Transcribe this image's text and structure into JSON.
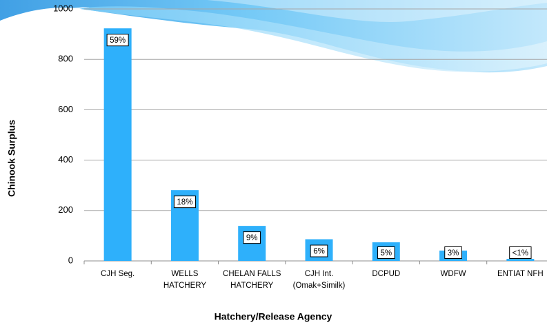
{
  "chart_data": {
    "type": "bar",
    "categories": [
      [
        "CJH Seg."
      ],
      [
        "WELLS",
        "HATCHERY"
      ],
      [
        "CHELAN FALLS",
        "HATCHERY"
      ],
      [
        "CJH Int.",
        "(Omak+Similk)"
      ],
      [
        "DCPUD"
      ],
      [
        "WDFW"
      ],
      [
        "ENTIAT NFH"
      ]
    ],
    "values": [
      923,
      281,
      139,
      86,
      74,
      41,
      8
    ],
    "percent_labels": [
      "59%",
      "18%",
      "9%",
      "6%",
      "5%",
      "3%",
      "<1%"
    ],
    "color": "#2eb0fb",
    "ylim": [
      0,
      1000
    ],
    "yticks": [
      0,
      200,
      400,
      600,
      800,
      1000
    ],
    "grid": true,
    "y_label": "Chinook Surplus",
    "x_label": "Hatchery/Release Agency"
  }
}
